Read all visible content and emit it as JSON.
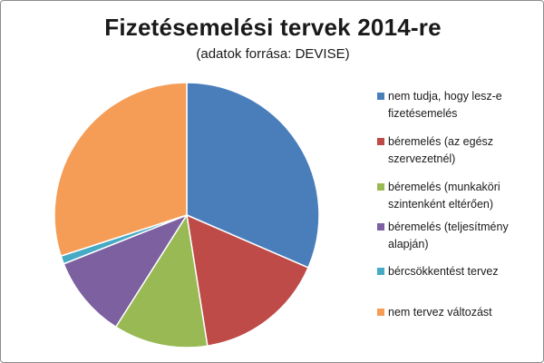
{
  "chart_data": {
    "type": "pie",
    "title": "Fizetésemelési tervek 2014-re",
    "subtitle": "(adatok forrása: DEVISE)",
    "legend_position": "right",
    "slices": [
      {
        "label": "nem tudja,  hogy lesz-e fizetésemelés",
        "value": 31.5,
        "color": "#4a7ebb"
      },
      {
        "label": "béremelés (az egész szervezetnél)",
        "value": 16.0,
        "color": "#be4b48"
      },
      {
        "label": "béremelés (munkaköri szintenként eltérően)",
        "value": 11.5,
        "color": "#98b954"
      },
      {
        "label": "béremelés (teljesítmény alapján)",
        "value": 10.0,
        "color": "#7d60a0"
      },
      {
        "label": "bércsökkentést tervez",
        "value": 1.0,
        "color": "#46aac5"
      },
      {
        "label": "nem tervez változást",
        "value": 30.0,
        "color": "#f59d56"
      }
    ]
  }
}
